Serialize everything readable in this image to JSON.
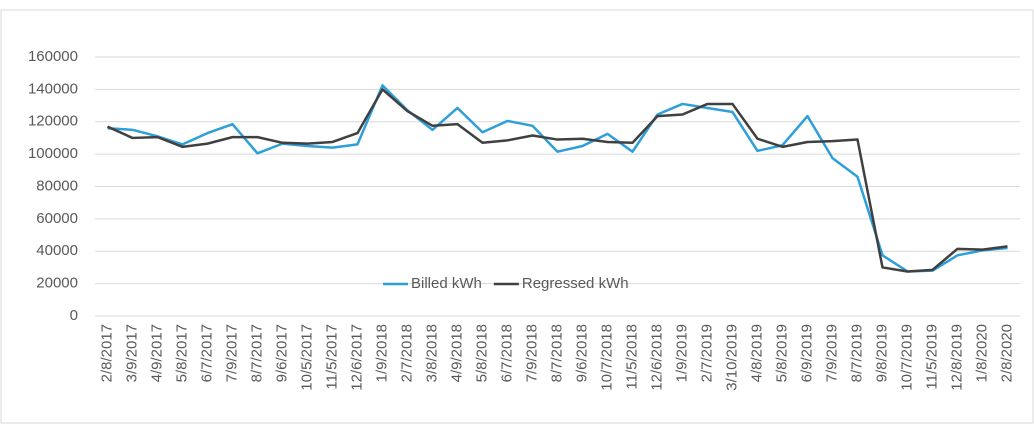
{
  "chart_data": {
    "type": "line",
    "categories": [
      "2/8/2017",
      "3/9/2017",
      "4/9/2017",
      "5/8/2017",
      "6/7/2017",
      "7/9/2017",
      "8/7/2017",
      "9/6/2017",
      "10/5/2017",
      "11/5/2017",
      "12/6/2017",
      "1/9/2018",
      "2/7/2018",
      "3/8/2018",
      "4/9/2018",
      "5/8/2018",
      "6/7/2018",
      "7/9/2018",
      "8/7/2018",
      "9/6/2018",
      "10/7/2018",
      "11/5/2018",
      "12/6/2018",
      "1/9/2019",
      "2/7/2019",
      "3/10/2019",
      "4/8/2019",
      "5/8/2019",
      "6/9/2019",
      "7/9/2019",
      "8/7/2019",
      "9/8/2019",
      "10/7/2019",
      "11/5/2019",
      "12/8/2019",
      "1/8/2020",
      "2/8/2020"
    ],
    "series": [
      {
        "name": "Billed kWh",
        "color": "#2e9fd9",
        "values": [
          116000,
          115000,
          111000,
          106000,
          113000,
          118500,
          100500,
          106500,
          105000,
          104000,
          106000,
          142500,
          127000,
          115000,
          128500,
          113500,
          120500,
          117500,
          101500,
          105000,
          112500,
          101500,
          124500,
          131000,
          128500,
          126000,
          102000,
          105500,
          123500,
          97500,
          86000,
          37500,
          27500,
          28000,
          37500,
          40500,
          42000
        ]
      },
      {
        "name": "Regressed kWh",
        "color": "#404040",
        "values": [
          117000,
          110000,
          110500,
          104500,
          106500,
          110500,
          110500,
          107000,
          106500,
          107500,
          113000,
          140000,
          126500,
          117500,
          118500,
          107000,
          108500,
          111500,
          109000,
          109500,
          107500,
          107000,
          123500,
          124500,
          131000,
          131000,
          109500,
          104500,
          107500,
          108000,
          109000,
          30000,
          27500,
          28500,
          41500,
          41000,
          43000
        ]
      }
    ],
    "ylim": [
      0,
      160000
    ],
    "yticks": [
      0,
      20000,
      40000,
      60000,
      80000,
      100000,
      120000,
      140000,
      160000
    ],
    "grid": true,
    "legend": "bottom"
  }
}
